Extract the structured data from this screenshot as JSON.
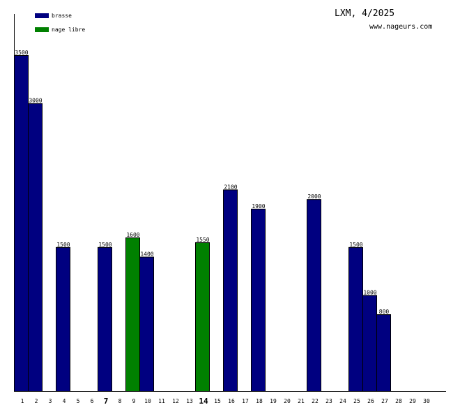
{
  "chart_data": {
    "type": "bar",
    "title": "LXM, 4/2025",
    "subtitle": "www.nageurs.com",
    "categories": [
      "1",
      "2",
      "3",
      "4",
      "5",
      "6",
      "7",
      "8",
      "9",
      "10",
      "11",
      "12",
      "13",
      "14",
      "15",
      "16",
      "17",
      "18",
      "19",
      "20",
      "21",
      "22",
      "23",
      "24",
      "25",
      "26",
      "27",
      "28",
      "29",
      "30"
    ],
    "highlighted_ticks": [
      "7",
      "14"
    ],
    "legend": [
      {
        "name": "brasse",
        "color": "#000080"
      },
      {
        "name": "nage libre",
        "color": "#008000"
      }
    ],
    "legend_placement": "top-left",
    "bars": [
      {
        "day": 1,
        "value": 3500,
        "series": "brasse"
      },
      {
        "day": 2,
        "value": 3000,
        "series": "brasse"
      },
      {
        "day": 4,
        "value": 1500,
        "series": "brasse"
      },
      {
        "day": 7,
        "value": 1500,
        "series": "brasse"
      },
      {
        "day": 9,
        "value": 1600,
        "series": "nage libre"
      },
      {
        "day": 10,
        "value": 1400,
        "series": "brasse"
      },
      {
        "day": 14,
        "value": 1550,
        "series": "nage libre"
      },
      {
        "day": 16,
        "value": 2100,
        "series": "brasse"
      },
      {
        "day": 18,
        "value": 1900,
        "series": "brasse"
      },
      {
        "day": 22,
        "value": 2000,
        "series": "brasse"
      },
      {
        "day": 25,
        "value": 1500,
        "series": "brasse"
      },
      {
        "day": 26,
        "value": 1000,
        "series": "brasse"
      },
      {
        "day": 27,
        "value": 800,
        "series": "brasse"
      }
    ],
    "ylim": [
      0,
      3500
    ],
    "grid": false
  }
}
